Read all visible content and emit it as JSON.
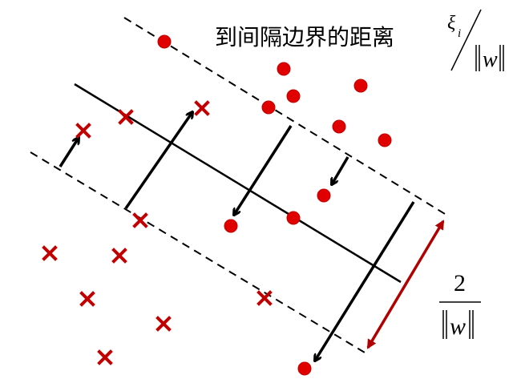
{
  "diagram": {
    "title": "到间隔边界的距离",
    "slack_label": {
      "numerator": "ξ",
      "subscript": "i",
      "denominator_var": "w"
    },
    "margin_label": {
      "numerator": "2",
      "denominator_var": "w"
    },
    "colors": {
      "point": "#e00000",
      "point_stroke": "#c00000",
      "cross": "#c00000",
      "line": "#000000",
      "margin_arrow": "#b00000"
    },
    "class_positive_marker": "filled-circle",
    "class_negative_marker": "cross"
  }
}
